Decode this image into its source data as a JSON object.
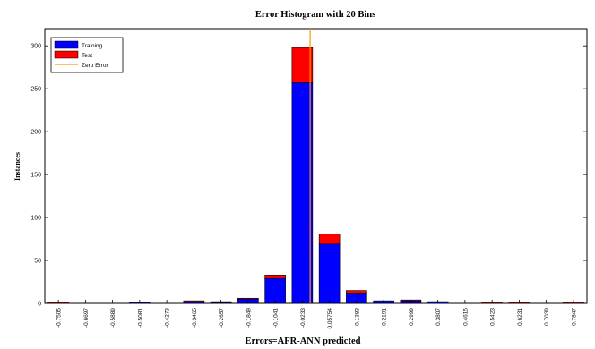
{
  "chart_data": {
    "type": "bar",
    "title": "Error Histogram with 20 Bins",
    "xlabel": "Errors=AFR-ANN predicted",
    "ylabel": "Instances",
    "categories": [
      "-0.7505",
      "-0.6697",
      "-0.5889",
      "-0.5081",
      "-0.4273",
      "-0.3465",
      "-0.2657",
      "-0.1849",
      "-0.1041",
      "-0.0233",
      "0.05754",
      "0.1383",
      "0.2191",
      "0.2999",
      "0.3807",
      "0.4615",
      "0.5423",
      "0.6231",
      "0.7039",
      "0.7847"
    ],
    "series": [
      {
        "name": "Training",
        "color": "#0000ff",
        "values": [
          0,
          0,
          0,
          1,
          0,
          2,
          1,
          5,
          29,
          257,
          69,
          12,
          3,
          3,
          2,
          0,
          0,
          0,
          0,
          0
        ]
      },
      {
        "name": "Test",
        "color": "#ff0000",
        "values": [
          1,
          0,
          0,
          0,
          0,
          1,
          1,
          1,
          4,
          41,
          12,
          3,
          0,
          1,
          0,
          0,
          1,
          1,
          0,
          1
        ]
      }
    ],
    "zero_error": {
      "name": "Zero Error",
      "color": "#ff9a00",
      "x": 0
    },
    "stacked": true,
    "ylim": [
      0,
      320
    ],
    "yticks": [
      0,
      50,
      100,
      150,
      200,
      250,
      300
    ],
    "legend_position": "top-left",
    "grid": false
  }
}
